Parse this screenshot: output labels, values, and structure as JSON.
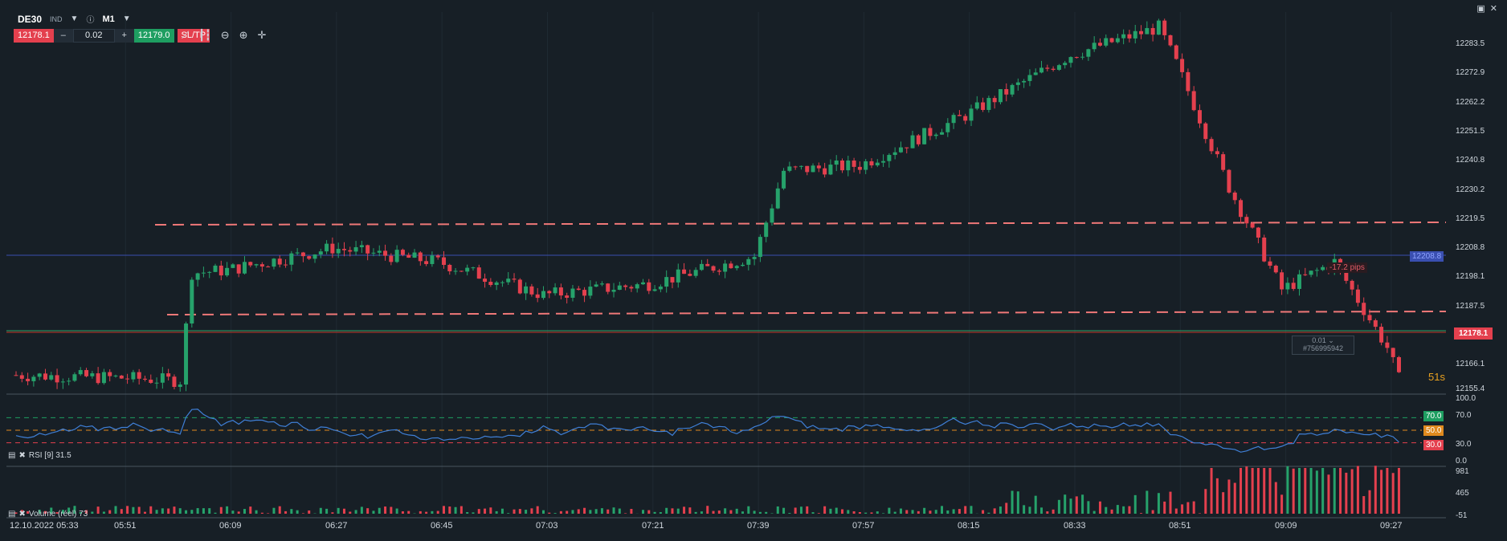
{
  "header": {
    "symbol": "DE30",
    "market_tag": "IND",
    "info_icon": "info-icon",
    "timeframe": "M1",
    "sell_price": "12178.1",
    "lot_minus": "–",
    "lot_size": "0.02",
    "lot_plus": "+",
    "buy_price": "12179.0",
    "sltp_label": "SL/TP",
    "tools": [
      "line-chart-icon",
      "candles-icon",
      "zoom-out-icon",
      "zoom-in-icon",
      "crosshair-icon"
    ]
  },
  "window_controls": [
    "maximize-icon",
    "close-icon"
  ],
  "price_axis": [
    "12283.5",
    "12272.9",
    "12262.2",
    "12251.5",
    "12240.8",
    "12230.2",
    "12219.5",
    "12208.8",
    "12198.1",
    "12187.5",
    "12166.1",
    "12155.4"
  ],
  "price_tags": {
    "current_price": "12178.1",
    "position_level": "12208.8",
    "pips": "-17.2 pips",
    "order_lot": "0.01",
    "order_id": "#756995942",
    "countdown": "51s"
  },
  "rsi_pane": {
    "label": "RSI [9] 31.5",
    "axis": [
      "100.0",
      "70.0",
      "30.0",
      "0.0"
    ],
    "level_tags": [
      "70.0",
      "50.0",
      "30.0"
    ]
  },
  "volume_pane": {
    "label": "Volume (réel) 73",
    "axis": [
      "981",
      "465",
      "-51"
    ]
  },
  "time_axis": [
    "12.10.2022 05:33",
    "05:51",
    "06:09",
    "06:27",
    "06:45",
    "07:03",
    "07:21",
    "07:39",
    "07:57",
    "08:15",
    "08:33",
    "08:51",
    "09:09",
    "09:27"
  ],
  "colors": {
    "background": "#171f26",
    "up": "#26a26b",
    "down": "#e4404e",
    "rsi_line": "#3f7fd6",
    "level_line": "#f07878",
    "position_line": "#3a4fb0"
  },
  "chart_data": {
    "type": "candlestick",
    "instrument": "DE30",
    "timeframe": "M1",
    "ylim": [
      12155.4,
      12290
    ],
    "key_points": [
      {
        "x": "05:33",
        "y": 12162
      },
      {
        "x": "05:51",
        "y": 12161
      },
      {
        "x": "06:01",
        "y": 12160
      },
      {
        "x": "06:03",
        "y": 12199
      },
      {
        "x": "06:09",
        "y": 12200
      },
      {
        "x": "06:27",
        "y": 12208
      },
      {
        "x": "06:45",
        "y": 12203
      },
      {
        "x": "07:03",
        "y": 12191
      },
      {
        "x": "07:21",
        "y": 12195
      },
      {
        "x": "07:39",
        "y": 12205
      },
      {
        "x": "07:44",
        "y": 12236
      },
      {
        "x": "07:57",
        "y": 12238
      },
      {
        "x": "08:15",
        "y": 12256
      },
      {
        "x": "08:33",
        "y": 12278
      },
      {
        "x": "08:48",
        "y": 12288
      },
      {
        "x": "08:51",
        "y": 12275
      },
      {
        "x": "09:00",
        "y": 12230
      },
      {
        "x": "09:09",
        "y": 12193
      },
      {
        "x": "09:18",
        "y": 12203
      },
      {
        "x": "09:27",
        "y": 12172
      },
      {
        "x": "09:30",
        "y": 12155
      }
    ]
  }
}
